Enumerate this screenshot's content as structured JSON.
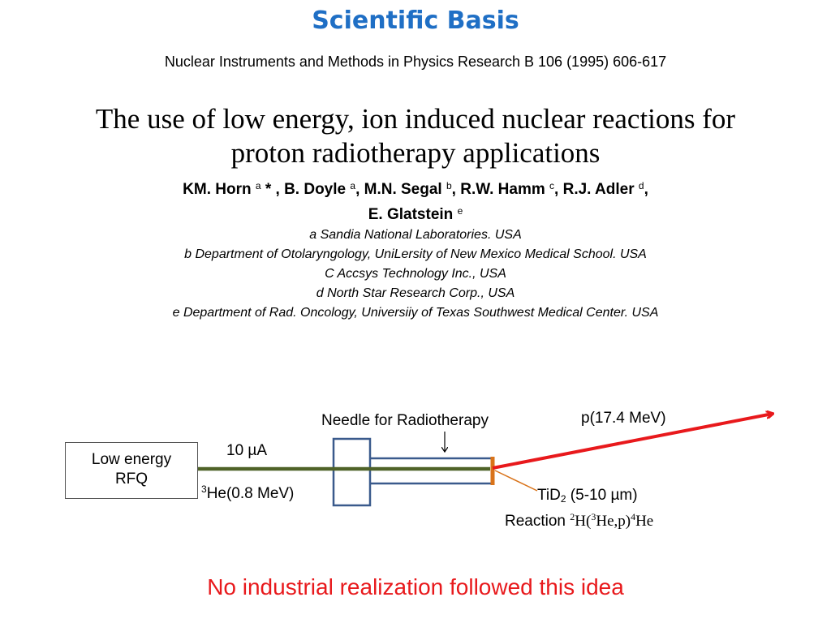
{
  "slide": {
    "title": "Scientific Basis",
    "journal": "Nuclear Instruments and Methods in Physics Research B 106 (1995) 606-617",
    "paper_title_line1": "The use of low energy, ion induced nuclear reactions for",
    "paper_title_line2": "proton radiotherapy applications",
    "authors": [
      {
        "name": "KM. Horn",
        "sup": "a",
        "suffix": " * , "
      },
      {
        "name": "B. Doyle",
        "sup": "a",
        "suffix": ", "
      },
      {
        "name": "M.N. Segal",
        "sup": "b",
        "suffix": ", "
      },
      {
        "name": "R.W. Hamm",
        "sup": "c",
        "suffix": ", "
      },
      {
        "name": "R.J. Adler",
        "sup": "d",
        "suffix": ","
      },
      {
        "name": "E. Glatstein",
        "sup": "e",
        "suffix": ""
      }
    ],
    "affiliations": [
      "a Sandia National Laboratories. USA",
      "b Department of Otolaryngology, UniLersity of New Mexico Medical School. USA",
      "C Accsys Technology Inc., USA",
      "d North Star Research Corp., USA",
      "e Department of Rad. Oncology, Universiiy of Texas Southwest Medical Center. USA"
    ],
    "conclusion": "No industrial realization followed this idea"
  },
  "diagram": {
    "rfq_line1": "Low energy",
    "rfq_line2": "RFQ",
    "needle_label": "Needle for Radiotherapy",
    "current_value": "10 ",
    "current_unit": "µA",
    "beam_sup": "3",
    "beam_label": "He(0.8 MeV)",
    "proton_label": "p(17.4 MeV)",
    "target_prefix": "TiD",
    "target_sub": "2",
    "target_suffix": " (5-10 µm)",
    "reaction_prefix": "Reaction ",
    "reaction_sup1": "2",
    "reaction_part1": "H(",
    "reaction_sup2": "3",
    "reaction_part2": "He,p)",
    "reaction_sup3": "4",
    "reaction_part3": "He",
    "colors": {
      "beam": "#4f6228",
      "proton": "#e8191c",
      "needle": "#3a5a8c",
      "target": "#d9731a",
      "title": "#1f6fc5"
    }
  }
}
